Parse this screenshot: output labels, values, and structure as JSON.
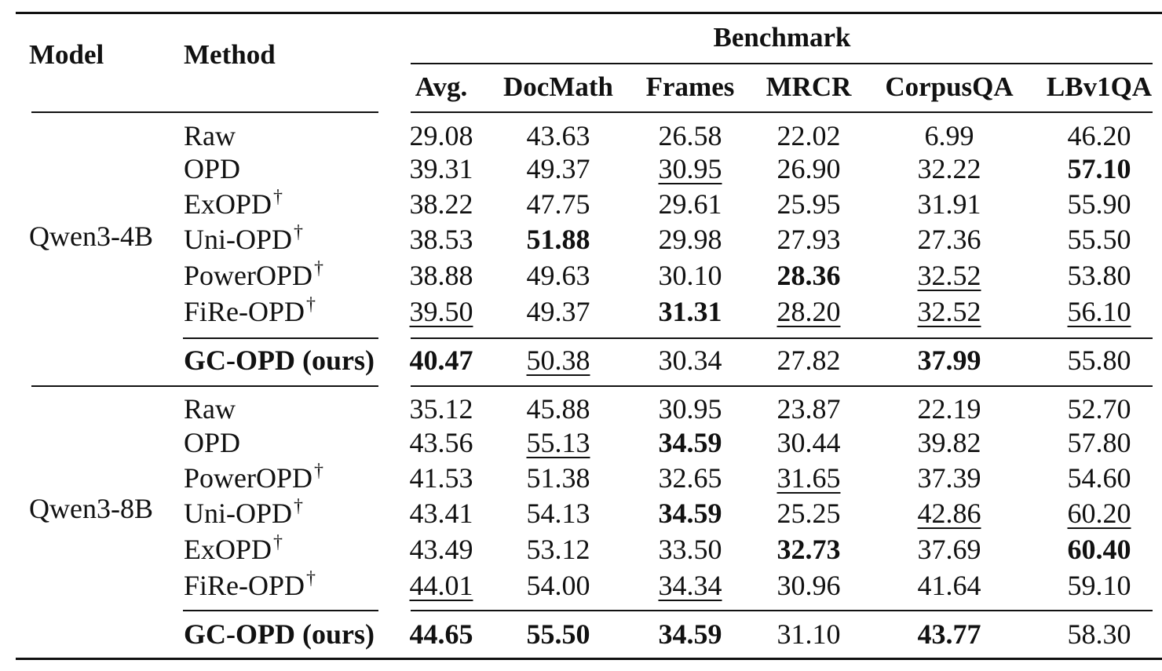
{
  "header": {
    "model": "Model",
    "method": "Method",
    "benchmark": "Benchmark",
    "columns": [
      "Avg.",
      "DocMath",
      "Frames",
      "MRCR",
      "CorpusQA",
      "LBv1QA"
    ]
  },
  "groups": [
    {
      "model": "Qwen3-4B",
      "rows": [
        {
          "method": "Raw",
          "dagger": false,
          "cells": [
            {
              "v": "29.08"
            },
            {
              "v": "43.63"
            },
            {
              "v": "26.58"
            },
            {
              "v": "22.02"
            },
            {
              "v": "6.99"
            },
            {
              "v": "46.20"
            }
          ]
        },
        {
          "method": "OPD",
          "dagger": false,
          "cells": [
            {
              "v": "39.31"
            },
            {
              "v": "49.37"
            },
            {
              "v": "30.95",
              "u": true
            },
            {
              "v": "26.90"
            },
            {
              "v": "32.22"
            },
            {
              "v": "57.10",
              "b": true
            }
          ]
        },
        {
          "method": "ExOPD",
          "dagger": true,
          "cells": [
            {
              "v": "38.22"
            },
            {
              "v": "47.75"
            },
            {
              "v": "29.61"
            },
            {
              "v": "25.95"
            },
            {
              "v": "31.91"
            },
            {
              "v": "55.90"
            }
          ]
        },
        {
          "method": "Uni-OPD",
          "dagger": true,
          "cells": [
            {
              "v": "38.53"
            },
            {
              "v": "51.88",
              "b": true
            },
            {
              "v": "29.98"
            },
            {
              "v": "27.93"
            },
            {
              "v": "27.36"
            },
            {
              "v": "55.50"
            }
          ]
        },
        {
          "method": "PowerOPD",
          "dagger": true,
          "cells": [
            {
              "v": "38.88"
            },
            {
              "v": "49.63"
            },
            {
              "v": "30.10"
            },
            {
              "v": "28.36",
              "b": true
            },
            {
              "v": "32.52",
              "u": true
            },
            {
              "v": "53.80"
            }
          ]
        },
        {
          "method": "FiRe-OPD",
          "dagger": true,
          "cells": [
            {
              "v": "39.50",
              "u": true
            },
            {
              "v": "49.37"
            },
            {
              "v": "31.31",
              "b": true
            },
            {
              "v": "28.20",
              "u": true
            },
            {
              "v": "32.52",
              "u": true
            },
            {
              "v": "56.10",
              "u": true
            }
          ]
        }
      ],
      "ours": {
        "method": "GC-OPD (ours)",
        "cells": [
          {
            "v": "40.47",
            "b": true
          },
          {
            "v": "50.38",
            "u": true
          },
          {
            "v": "30.34"
          },
          {
            "v": "27.82"
          },
          {
            "v": "37.99",
            "b": true
          },
          {
            "v": "55.80"
          }
        ]
      }
    },
    {
      "model": "Qwen3-8B",
      "rows": [
        {
          "method": "Raw",
          "dagger": false,
          "cells": [
            {
              "v": "35.12"
            },
            {
              "v": "45.88"
            },
            {
              "v": "30.95"
            },
            {
              "v": "23.87"
            },
            {
              "v": "22.19"
            },
            {
              "v": "52.70"
            }
          ]
        },
        {
          "method": "OPD",
          "dagger": false,
          "cells": [
            {
              "v": "43.56"
            },
            {
              "v": "55.13",
              "u": true
            },
            {
              "v": "34.59",
              "b": true
            },
            {
              "v": "30.44"
            },
            {
              "v": "39.82"
            },
            {
              "v": "57.80"
            }
          ]
        },
        {
          "method": "PowerOPD",
          "dagger": true,
          "cells": [
            {
              "v": "41.53"
            },
            {
              "v": "51.38"
            },
            {
              "v": "32.65"
            },
            {
              "v": "31.65",
              "u": true
            },
            {
              "v": "37.39"
            },
            {
              "v": "54.60"
            }
          ]
        },
        {
          "method": "Uni-OPD",
          "dagger": true,
          "cells": [
            {
              "v": "43.41"
            },
            {
              "v": "54.13"
            },
            {
              "v": "34.59",
              "b": true
            },
            {
              "v": "25.25"
            },
            {
              "v": "42.86",
              "u": true
            },
            {
              "v": "60.20",
              "u": true
            }
          ]
        },
        {
          "method": "ExOPD",
          "dagger": true,
          "cells": [
            {
              "v": "43.49"
            },
            {
              "v": "53.12"
            },
            {
              "v": "33.50"
            },
            {
              "v": "32.73",
              "b": true
            },
            {
              "v": "37.69"
            },
            {
              "v": "60.40",
              "b": true
            }
          ]
        },
        {
          "method": "FiRe-OPD",
          "dagger": true,
          "cells": [
            {
              "v": "44.01",
              "u": true
            },
            {
              "v": "54.00"
            },
            {
              "v": "34.34",
              "u": true
            },
            {
              "v": "30.96"
            },
            {
              "v": "41.64"
            },
            {
              "v": "59.10"
            }
          ]
        }
      ],
      "ours": {
        "method": "GC-OPD (ours)",
        "cells": [
          {
            "v": "44.65",
            "b": true
          },
          {
            "v": "55.50",
            "b": true
          },
          {
            "v": "34.59",
            "b": true
          },
          {
            "v": "31.10"
          },
          {
            "v": "43.77",
            "b": true
          },
          {
            "v": "58.30"
          }
        ]
      }
    }
  ]
}
